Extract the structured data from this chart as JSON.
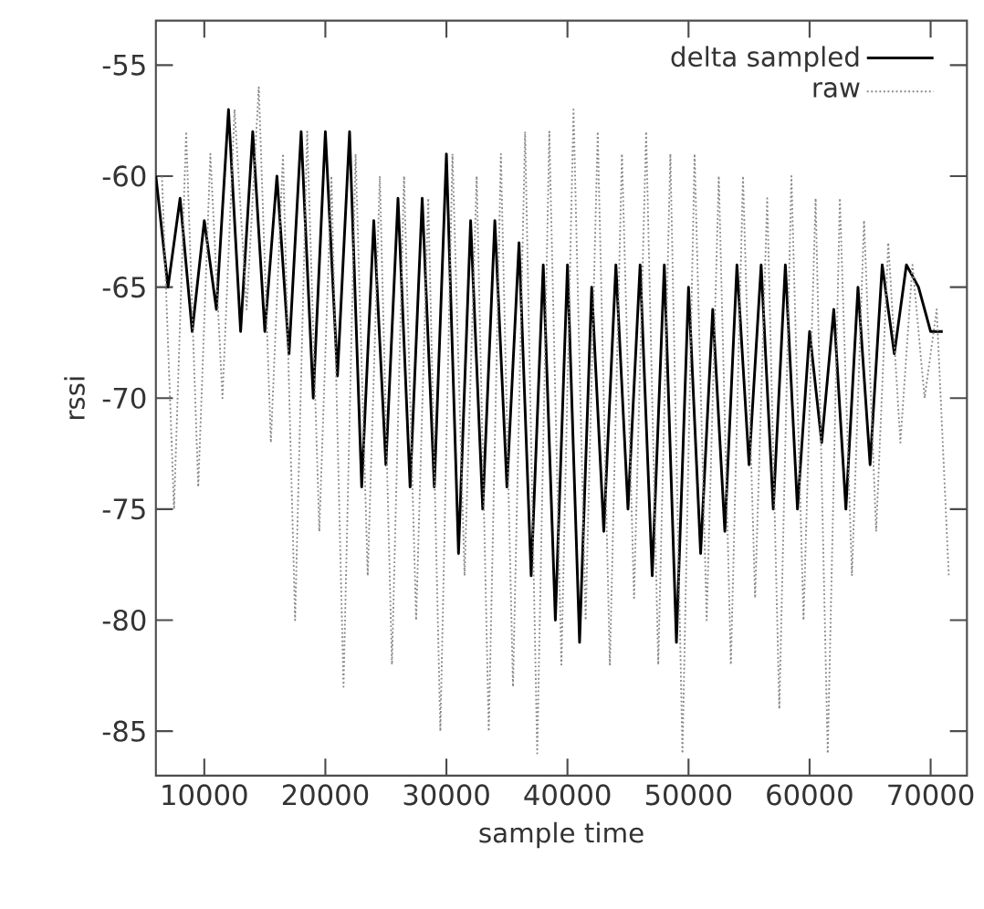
{
  "chart_data": {
    "type": "line",
    "xlabel": "sample time",
    "ylabel": "rssi",
    "xlim": [
      6000,
      73000
    ],
    "ylim": [
      -87,
      -53
    ],
    "xticks": [
      10000,
      20000,
      30000,
      40000,
      50000,
      60000,
      70000
    ],
    "yticks": [
      -85,
      -80,
      -75,
      -70,
      -65,
      -60,
      -55
    ],
    "legend": "top right",
    "series": [
      {
        "name": "delta sampled",
        "color": "#000000",
        "line_style": "solid",
        "x": [
          6000,
          7000,
          8000,
          9000,
          10000,
          11000,
          12000,
          13000,
          14000,
          15000,
          16000,
          17000,
          18000,
          19000,
          20000,
          21000,
          22000,
          23000,
          24000,
          25000,
          26000,
          27000,
          28000,
          29000,
          30000,
          31000,
          32000,
          33000,
          34000,
          35000,
          36000,
          37000,
          38000,
          39000,
          40000,
          41000,
          42000,
          43000,
          44000,
          45000,
          46000,
          47000,
          48000,
          49000,
          50000,
          51000,
          52000,
          53000,
          54000,
          55000,
          56000,
          57000,
          58000,
          59000,
          60000,
          61000,
          62000,
          63000,
          64000,
          65000,
          66000,
          67000,
          68000,
          69000,
          70000,
          71000
        ],
        "values": [
          -60,
          -65,
          -61,
          -67,
          -62,
          -66,
          -57,
          -67,
          -58,
          -67,
          -60,
          -68,
          -58,
          -70,
          -58,
          -69,
          -58,
          -74,
          -62,
          -73,
          -61,
          -74,
          -61,
          -74,
          -59,
          -77,
          -62,
          -75,
          -62,
          -74,
          -63,
          -78,
          -64,
          -80,
          -64,
          -81,
          -65,
          -76,
          -64,
          -75,
          -64,
          -78,
          -64,
          -81,
          -65,
          -77,
          -66,
          -76,
          -64,
          -73,
          -64,
          -75,
          -64,
          -75,
          -67,
          -72,
          -66,
          -75,
          -65,
          -73,
          -64,
          -68,
          -64,
          -65,
          -67,
          -67
        ]
      },
      {
        "name": "raw",
        "color": "#888888",
        "line_style": "dotted",
        "x": [
          6500,
          7500,
          8500,
          9500,
          10500,
          11500,
          12500,
          13500,
          14500,
          15500,
          16500,
          17500,
          18500,
          19500,
          20500,
          21500,
          22500,
          23500,
          24500,
          25500,
          26500,
          27500,
          28500,
          29500,
          30500,
          31500,
          32500,
          33500,
          34500,
          35500,
          36500,
          37500,
          38500,
          39500,
          40500,
          41500,
          42500,
          43500,
          44500,
          45500,
          46500,
          47500,
          48500,
          49500,
          50500,
          51500,
          52500,
          53500,
          54500,
          55500,
          56500,
          57500,
          58500,
          59500,
          60500,
          61500,
          62500,
          63500,
          64500,
          65500,
          66500,
          67500,
          68500,
          69500,
          70500,
          71500
        ],
        "values": [
          -60,
          -75,
          -58,
          -74,
          -59,
          -70,
          -57,
          -66,
          -56,
          -72,
          -59,
          -80,
          -58,
          -76,
          -60,
          -83,
          -59,
          -78,
          -60,
          -82,
          -60,
          -80,
          -61,
          -85,
          -59,
          -78,
          -60,
          -85,
          -59,
          -83,
          -58,
          -86,
          -58,
          -82,
          -57,
          -80,
          -58,
          -82,
          -59,
          -79,
          -58,
          -82,
          -59,
          -86,
          -59,
          -80,
          -60,
          -82,
          -60,
          -79,
          -61,
          -84,
          -60,
          -80,
          -61,
          -86,
          -61,
          -78,
          -62,
          -76,
          -63,
          -72,
          -64,
          -70,
          -66,
          -78
        ]
      }
    ]
  }
}
